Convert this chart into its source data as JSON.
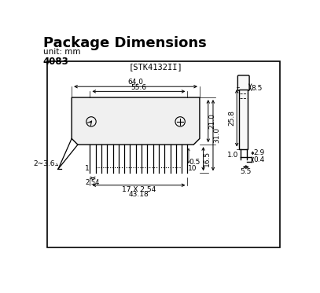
{
  "title": "Package Dimensions",
  "unit_text": "unit: mm",
  "part_number": "4083",
  "model_label": "[STK4132II]",
  "bg_color": "#ffffff",
  "line_color": "#000000",
  "dims": {
    "width_64": "64.0",
    "width_55": "55.6",
    "height_31": "31.0",
    "height_21": "21.0",
    "height_16": "16.5",
    "pitch": "2.54",
    "total_pitch": "17 X 2.54",
    "total_pitch_mm": "43.18",
    "pin_offset": "0.5",
    "tab_dim": "2~3.6",
    "side_height": "25.8",
    "side_top": "8.5",
    "side_lead_x": "2.9",
    "side_lead_y": "0.4",
    "side_lead_w": "5.5",
    "side_x1": "1.0"
  }
}
